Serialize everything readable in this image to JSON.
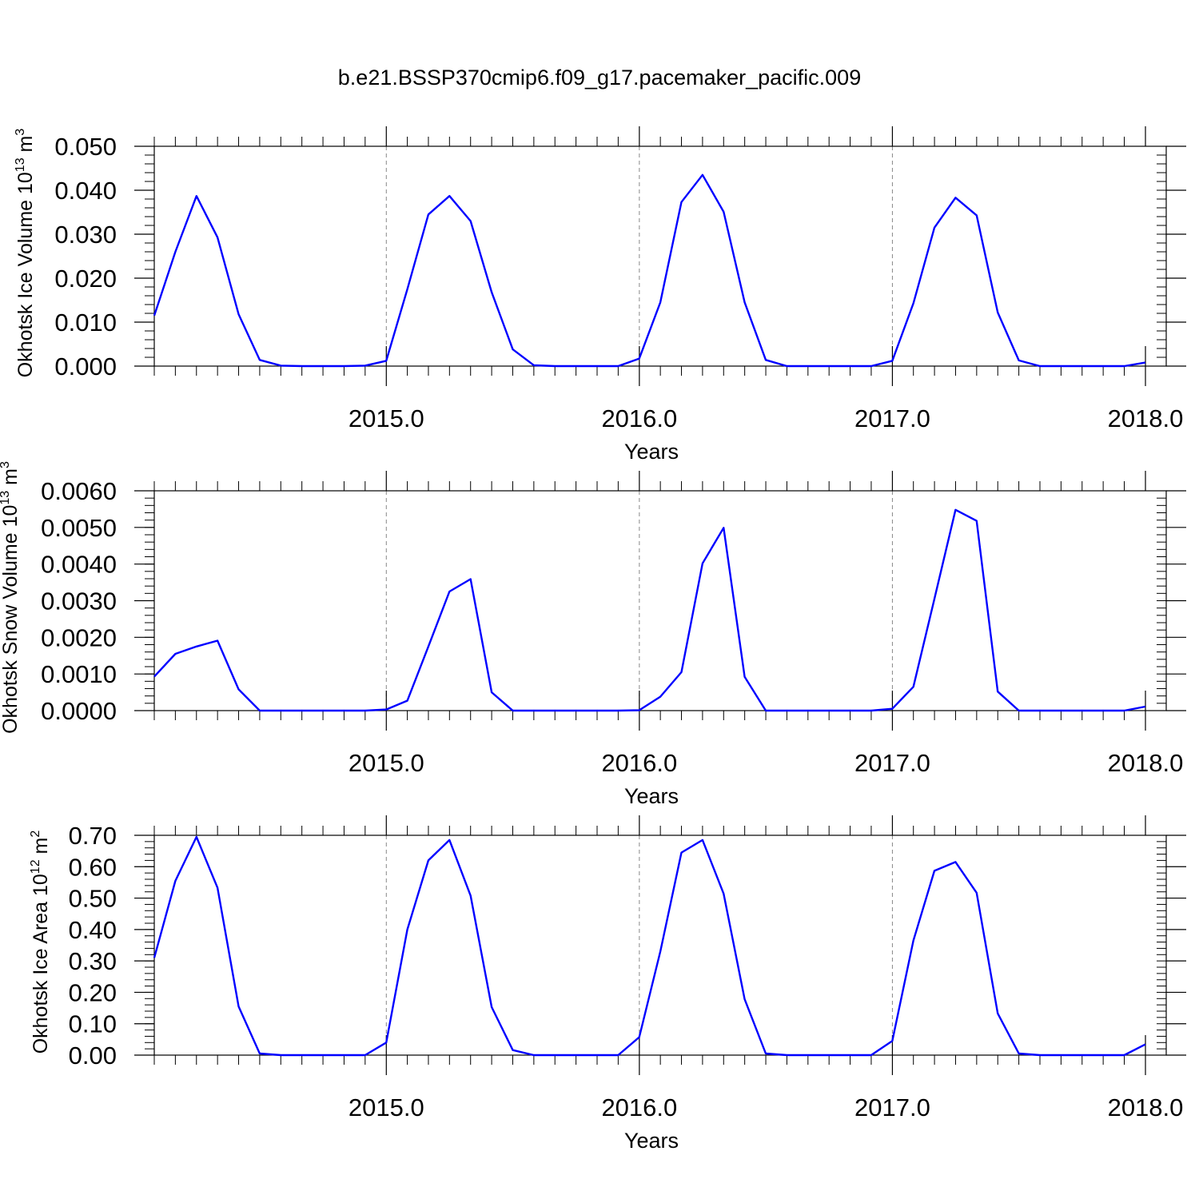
{
  "figure": {
    "title": "b.e21.BSSP370cmip6.f09_g17.pacemaker_pacific.009"
  },
  "chart_data": [
    {
      "type": "line",
      "title": "",
      "xlabel": "Years",
      "ylabel": "Okhotsk Ice Volume 10",
      "ylabel_exp": "13",
      "ylabel_unit": " m",
      "ylabel_unit_exp": "3",
      "xlim": [
        2014.083,
        2018.0
      ],
      "ylim": [
        0,
        0.05
      ],
      "x_ticks": [
        2015.0,
        2016.0,
        2017.0,
        2018.0
      ],
      "x_tick_labels": [
        "2015.0",
        "2016.0",
        "2017.0",
        "2018.0"
      ],
      "y_ticks": [
        0,
        0.01,
        0.02,
        0.03,
        0.04,
        0.05
      ],
      "y_tick_labels": [
        "0.000",
        "0.010",
        "0.020",
        "0.030",
        "0.040",
        "0.050"
      ],
      "y_minor_step": 0.002,
      "vgrid_dashed_at": [
        2015.0,
        2016.0,
        2017.0
      ],
      "line_color": "#0000ff",
      "series": [
        {
          "x_start": 2014.083,
          "x_step": 0.08333,
          "values": [
            0.0115,
            0.026,
            0.0387,
            0.0293,
            0.0118,
            0.0014,
            0.0001,
            0.0,
            0.0,
            0.0,
            0.0001,
            0.0012,
            0.0175,
            0.0345,
            0.0387,
            0.033,
            0.0168,
            0.0038,
            0.0002,
            0.0,
            0.0,
            0.0,
            0.0,
            0.0017,
            0.0145,
            0.0373,
            0.0435,
            0.0351,
            0.0145,
            0.0014,
            0.0,
            0.0,
            0.0,
            0.0,
            0.0,
            0.0012,
            0.0143,
            0.0315,
            0.0383,
            0.0343,
            0.0122,
            0.0013,
            0.0,
            0.0,
            0.0,
            0.0,
            0.0,
            0.0008
          ]
        }
      ]
    },
    {
      "type": "line",
      "title": "",
      "xlabel": "Years",
      "ylabel": "Okhotsk Snow Volume 10",
      "ylabel_exp": "13",
      "ylabel_unit": " m",
      "ylabel_unit_exp": "3",
      "xlim": [
        2014.083,
        2018.0
      ],
      "ylim": [
        0,
        0.006
      ],
      "x_ticks": [
        2015.0,
        2016.0,
        2017.0,
        2018.0
      ],
      "x_tick_labels": [
        "2015.0",
        "2016.0",
        "2017.0",
        "2018.0"
      ],
      "y_ticks": [
        0,
        0.001,
        0.002,
        0.003,
        0.004,
        0.005,
        0.006
      ],
      "y_tick_labels": [
        "0.0000",
        "0.0010",
        "0.0020",
        "0.0030",
        "0.0040",
        "0.0050",
        "0.0060"
      ],
      "y_minor_step": 0.0002,
      "vgrid_dashed_at": [
        2015.0,
        2016.0,
        2017.0
      ],
      "line_color": "#0000ff",
      "series": [
        {
          "x_start": 2014.083,
          "x_step": 0.08333,
          "values": [
            0.00093,
            0.00155,
            0.00175,
            0.00191,
            0.00058,
            0.0,
            0.0,
            0.0,
            0.0,
            0.0,
            0.0,
            3e-05,
            0.00027,
            0.00175,
            0.00325,
            0.00359,
            0.0005,
            0.0,
            0.0,
            0.0,
            0.0,
            0.0,
            0.0,
            1e-05,
            0.00038,
            0.00105,
            0.00402,
            0.00499,
            0.00092,
            0.0,
            0.0,
            0.0,
            0.0,
            0.0,
            0.0,
            5e-05,
            0.00065,
            0.00305,
            0.00548,
            0.00518,
            0.00052,
            0.0,
            0.0,
            0.0,
            0.0,
            0.0,
            0.0,
            0.00011
          ]
        }
      ]
    },
    {
      "type": "line",
      "title": "",
      "xlabel": "Years",
      "ylabel": "Okhotsk Ice Area 10",
      "ylabel_exp": "12",
      "ylabel_unit": " m",
      "ylabel_unit_exp": "2",
      "xlim": [
        2014.083,
        2018.0
      ],
      "ylim": [
        0,
        0.7
      ],
      "x_ticks": [
        2015.0,
        2016.0,
        2017.0,
        2018.0
      ],
      "x_tick_labels": [
        "2015.0",
        "2016.0",
        "2017.0",
        "2018.0"
      ],
      "y_ticks": [
        0,
        0.1,
        0.2,
        0.3,
        0.4,
        0.5,
        0.6,
        0.7
      ],
      "y_tick_labels": [
        "0.00",
        "0.10",
        "0.20",
        "0.30",
        "0.40",
        "0.50",
        "0.60",
        "0.70"
      ],
      "y_minor_step": 0.02,
      "vgrid_dashed_at": [
        2015.0,
        2016.0,
        2017.0
      ],
      "line_color": "#0000ff",
      "series": [
        {
          "x_start": 2014.083,
          "x_step": 0.08333,
          "values": [
            0.31,
            0.555,
            0.695,
            0.533,
            0.155,
            0.005,
            0.0,
            0.0,
            0.0,
            0.0,
            0.0,
            0.04,
            0.4,
            0.62,
            0.685,
            0.508,
            0.153,
            0.016,
            0.0,
            0.0,
            0.0,
            0.0,
            0.0,
            0.057,
            0.33,
            0.645,
            0.685,
            0.514,
            0.178,
            0.005,
            0.0,
            0.0,
            0.0,
            0.0,
            0.0,
            0.045,
            0.365,
            0.587,
            0.615,
            0.517,
            0.133,
            0.005,
            0.0,
            0.0,
            0.0,
            0.0,
            0.0,
            0.034
          ]
        }
      ]
    }
  ]
}
